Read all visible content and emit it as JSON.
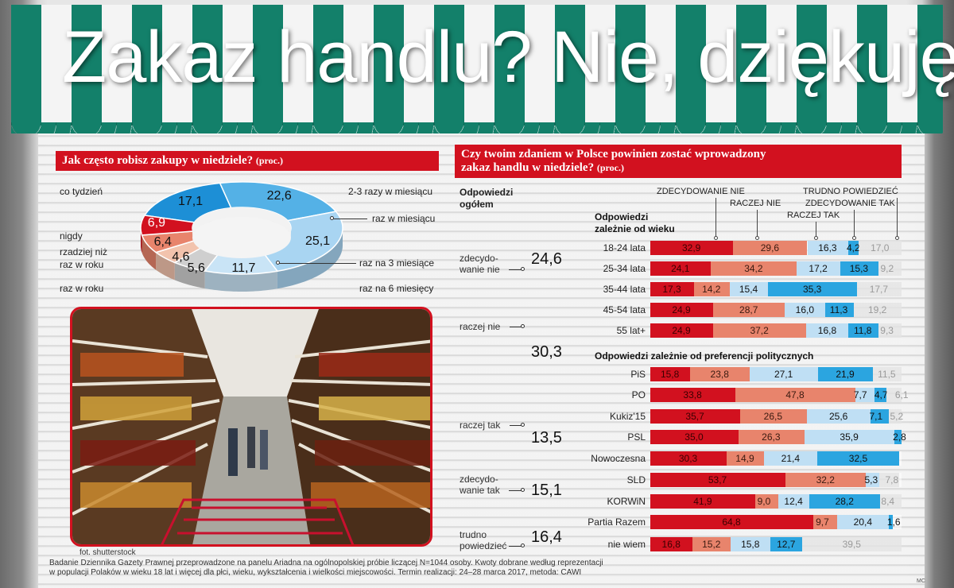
{
  "title": "Zakaz handlu? Nie, dziękuję",
  "left_section": {
    "heading": "Jak często robisz zakupy w niedziele?",
    "heading_unit": "(proc.)"
  },
  "right_section": {
    "heading_line1": "Czy twoim zdaniem w Polsce powinien zostać wprowadzony",
    "heading_line2": "zakaz handlu w niedziele?",
    "heading_unit": "(proc.)",
    "overall_head": "Odpowiedzi ogółem",
    "age_head": "Odpowiedzi zależnie od wieku",
    "party_head": "Odpowiedzi zależnie od preferencji politycznych",
    "col_heads": [
      "ZDECYDOWANIE NIE",
      "RACZEJ NIE",
      "RACZEJ TAK",
      "ZDECYDOWANIE TAK",
      "TRUDNO POWIEDZIEĆ"
    ]
  },
  "photo_credit": "fot. shutterstock",
  "footnote_line1": "Badanie Dziennika Gazety Prawnej przeprowadzone na panelu Ariadna na ogólnopolskiej próbie liczącej N=1044 osoby. Kwoty dobrane według reprezentacji",
  "footnote_line2": "w populacji Polaków w wieku 18 lat i więcej dla płci, wieku, wykształcenia i wielkości miejscowości. Termin realizacji: 24–28 marca 2017, metoda: CAWI",
  "signature": "MC",
  "colors": {
    "red": "#d2111f",
    "salmon": "#e8846c",
    "light_blue": "#bfdff4",
    "blue": "#2ba5e0",
    "gray": "#d9d9d9",
    "donut_dark_blue": "#1d8fd6",
    "donut_mid_blue": "#54b1e6",
    "donut_light_blue": "#a9d5f2",
    "donut_pale_blue": "#c9e4f6",
    "donut_gray": "#cfcfcf",
    "donut_peach": "#f2c3ad",
    "donut_salmon": "#e8846c",
    "donut_red": "#d2111f"
  },
  "chart_data": [
    {
      "type": "pie",
      "title": "Jak często robisz zakupy w niedziele? (proc.)",
      "categories": [
        "co tydzień",
        "2-3 razy w miesiącu",
        "raz w miesiącu",
        "raz na 3 miesiące",
        "raz na 6 miesięcy",
        "raz w roku",
        "rzadziej niż raz w roku",
        "nigdy"
      ],
      "values": [
        17.1,
        22.6,
        25.1,
        11.7,
        5.6,
        4.6,
        6.4,
        6.9
      ],
      "value_labels": [
        "17,1",
        "22,6",
        "25,1",
        "11,7",
        "5,6",
        "4,6",
        "6,4",
        "6,9"
      ],
      "label_texts": {
        "co_tydzien": "co tydzień",
        "dwa_trzy": "2-3 razy w miesiącu",
        "raz_w_miesiacu": "raz w miesiącu",
        "nigdy": "nigdy",
        "rzadziej_1": "rzadziej niż",
        "rzadziej_2": "raz w roku",
        "raz_na_3": "raz na 3 miesiące",
        "raz_w_roku": "raz w roku",
        "raz_na_6": "raz na 6 miesięcy"
      }
    },
    {
      "type": "table",
      "title": "Odpowiedzi ogółem",
      "categories": [
        "zdecydowanie nie",
        "raczej nie",
        "raczej tak",
        "zdecydowanie tak",
        "trudno powiedzieć"
      ],
      "values": [
        24.6,
        30.3,
        13.5,
        15.1,
        16.4
      ],
      "value_labels": [
        "24,6",
        "30,3",
        "13,5",
        "15,1",
        "16,4"
      ],
      "label_lines": [
        [
          "zdecydo-",
          "wanie nie"
        ],
        [
          "raczej nie"
        ],
        [
          "raczej tak"
        ],
        [
          "zdecydo-",
          "wanie tak"
        ],
        [
          "trudno",
          "powiedzieć"
        ]
      ]
    },
    {
      "type": "bar",
      "stacked": true,
      "title": "Odpowiedzi zależnie od wieku",
      "categories": [
        "18-24 lata",
        "25-34 lata",
        "35-44 lata",
        "45-54 lata",
        "55 lat+"
      ],
      "series": [
        {
          "name": "ZDECYDOWANIE NIE",
          "values": [
            32.9,
            24.1,
            17.3,
            24.9,
            24.9
          ],
          "labels": [
            "32,9",
            "24,1",
            "17,3",
            "24,9",
            "24,9"
          ]
        },
        {
          "name": "RACZEJ NIE",
          "values": [
            29.6,
            34.2,
            14.2,
            28.7,
            37.2
          ],
          "labels": [
            "29,6",
            "34,2",
            "14,2",
            "28,7",
            "37,2"
          ]
        },
        {
          "name": "RACZEJ TAK",
          "values": [
            16.3,
            17.2,
            15.4,
            16.0,
            16.8
          ],
          "labels": [
            "16,3",
            "17,2",
            "15,4",
            "16,0",
            "16,8"
          ]
        },
        {
          "name": "ZDECYDOWANIE TAK",
          "values": [
            4.2,
            15.3,
            35.3,
            11.3,
            11.8
          ],
          "labels": [
            "4,2",
            "15,3",
            "35,3",
            "11,3",
            "11,8"
          ]
        },
        {
          "name": "TRUDNO POWIEDZIEĆ",
          "values": [
            17.0,
            9.2,
            17.7,
            19.2,
            9.3
          ],
          "labels": [
            "17,0",
            "9,2",
            "17,7",
            "19,2",
            "9,3"
          ]
        }
      ]
    },
    {
      "type": "bar",
      "stacked": true,
      "title": "Odpowiedzi zależnie od preferencji politycznych",
      "categories": [
        "PiS",
        "PO",
        "Kukiz'15",
        "PSL",
        "Nowoczesna",
        "SLD",
        "KORWiN",
        "Partia Razem",
        "nie wiem"
      ],
      "series": [
        {
          "name": "ZDECYDOWANIE NIE",
          "values": [
            15.8,
            33.8,
            35.7,
            35.0,
            30.3,
            53.7,
            41.9,
            64.8,
            16.8
          ],
          "labels": [
            "15,8",
            "33,8",
            "35,7",
            "35,0",
            "30,3",
            "53,7",
            "41,9",
            "64,8",
            "16,8"
          ]
        },
        {
          "name": "RACZEJ NIE",
          "values": [
            23.8,
            47.8,
            26.5,
            26.3,
            14.9,
            32.2,
            9.0,
            9.7,
            15.2
          ],
          "labels": [
            "23,8",
            "47,8",
            "26,5",
            "26,3",
            "14,9",
            "32,2",
            "9,0",
            "9,7",
            "15,2"
          ]
        },
        {
          "name": "RACZEJ TAK",
          "values": [
            27.1,
            7.7,
            25.6,
            35.9,
            21.4,
            5.3,
            12.4,
            20.4,
            15.8
          ],
          "labels": [
            "27,1",
            "7,7",
            "25,6",
            "35,9",
            "21,4",
            "5,3",
            "12,4",
            "20,4",
            "15,8"
          ]
        },
        {
          "name": "ZDECYDOWANIE TAK",
          "values": [
            21.9,
            4.7,
            7.1,
            2.8,
            32.5,
            0,
            28.2,
            1.6,
            12.7
          ],
          "labels": [
            "21,9",
            "4,7",
            "7,1",
            "2,8",
            "32,5",
            "",
            "28,2",
            "1,6",
            "12,7"
          ]
        },
        {
          "name": "TRUDNO POWIEDZIEĆ",
          "values": [
            11.5,
            6.1,
            5.2,
            0,
            0,
            7.8,
            8.4,
            0,
            39.5
          ],
          "labels": [
            "11,5",
            "6,1",
            "5,2",
            "",
            "",
            "7,8",
            "8,4",
            "",
            "39,5"
          ]
        }
      ]
    }
  ]
}
